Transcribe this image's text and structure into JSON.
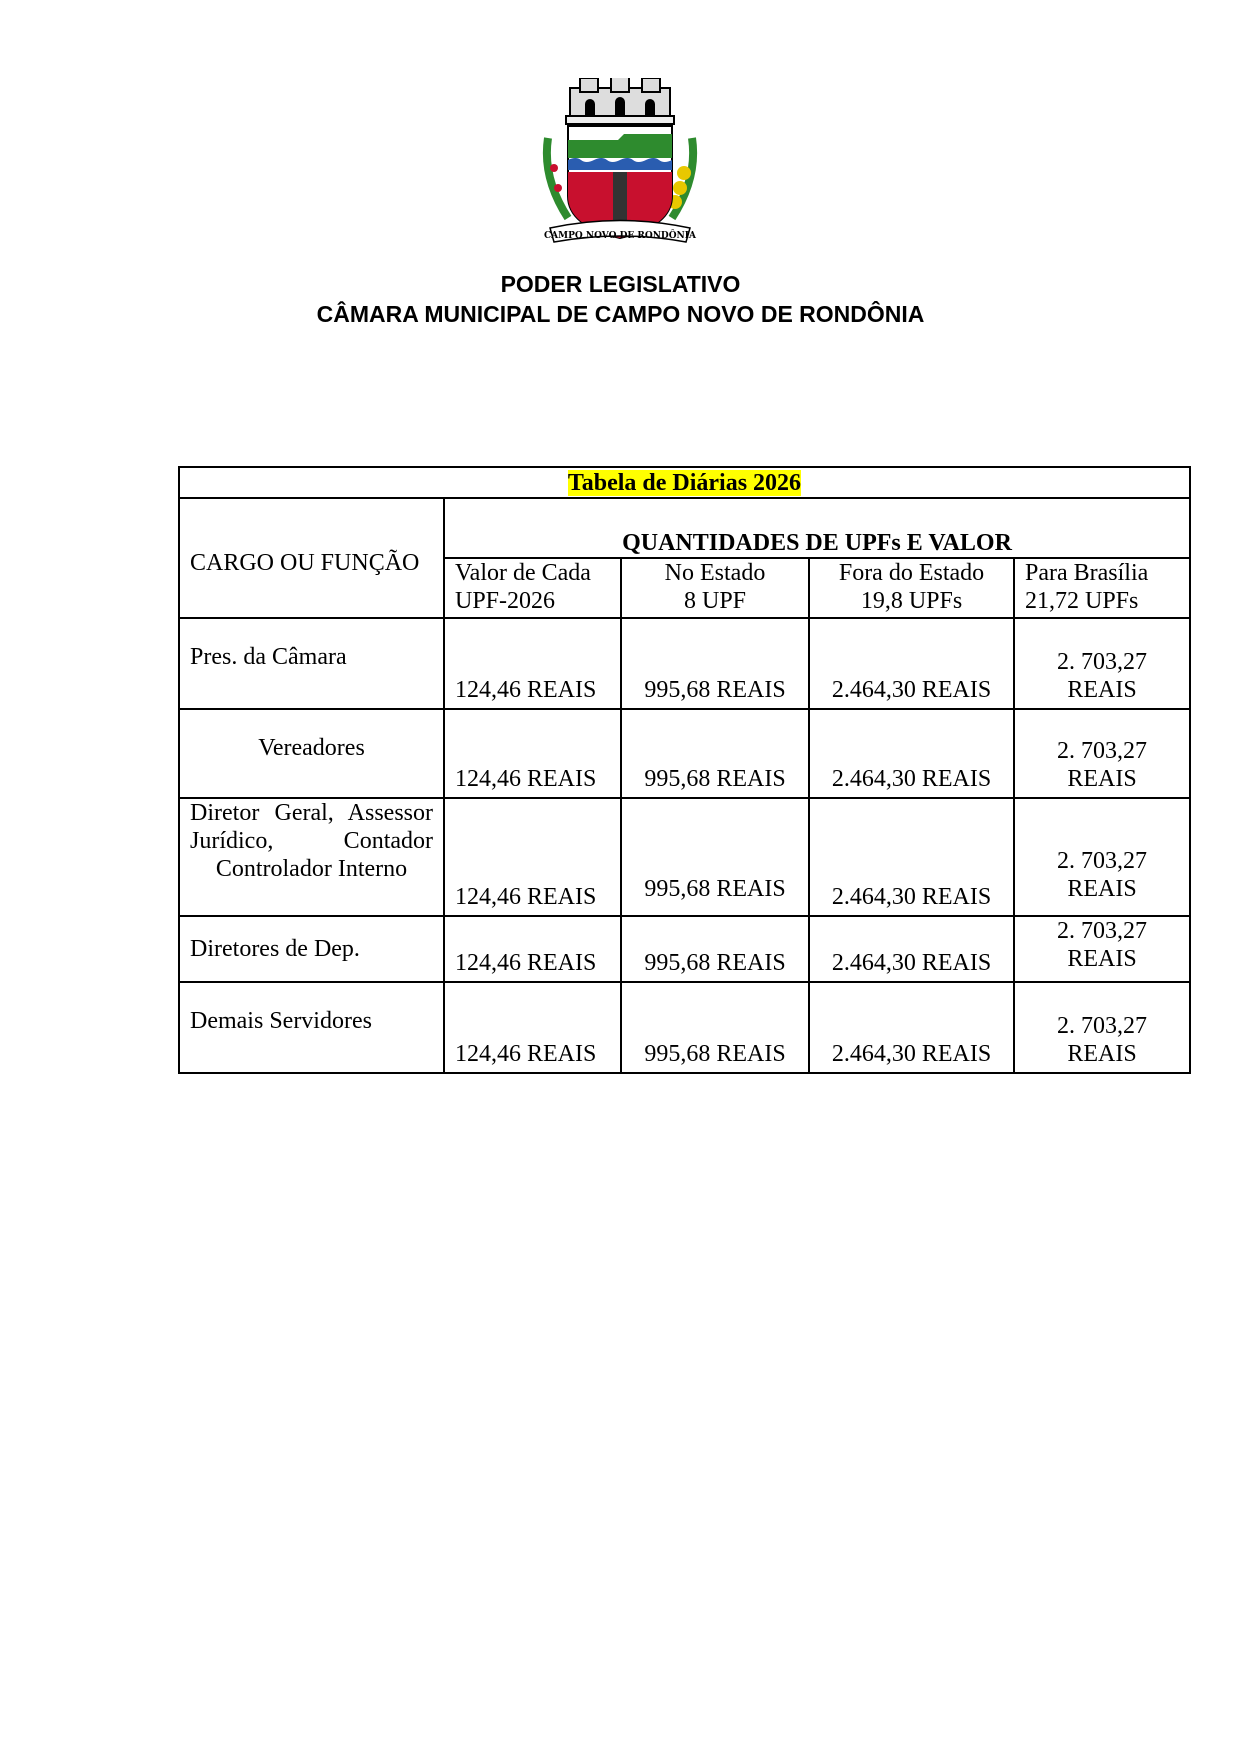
{
  "header": {
    "logo_text": "CAMPO NOVO DE RONDÔNIA",
    "line1": "PODER LEGISLATIVO",
    "line2": "CÂMARA MUNICIPAL DE CAMPO NOVO DE RONDÔNIA"
  },
  "table": {
    "title": "Tabela de Diárias 2026",
    "col1_header": "CARGO OU FUNÇÃO",
    "group_header": "QUANTIDADES DE UPFs E VALOR",
    "columns": [
      {
        "line1": "Valor de Cada",
        "line2": "UPF-2026"
      },
      {
        "line1": "No Estado",
        "line2": "8 UPF"
      },
      {
        "line1": "Fora do Estado",
        "line2": "19,8 UPFs"
      },
      {
        "line1": "Para Brasília",
        "line2": "21,72 UPFs"
      }
    ],
    "rows": [
      {
        "cargo": "Pres. da Câmara",
        "upf": "124,46  REAIS",
        "estado": "995,68  REAIS",
        "fora": "2.464,30  REAIS",
        "brasilia": "2. 703,27 REAIS"
      },
      {
        "cargo": "Vereadores",
        "upf": "124,46  REAIS",
        "estado": "995,68 REAIS",
        "fora": "2.464,30  REAIS",
        "brasilia": "2. 703,27 REAIS"
      },
      {
        "cargo": "Diretor Geral, Assessor Jurídico, Contador Controlador Interno",
        "upf": "124,46  REAIS",
        "estado": "995,68 REAIS",
        "fora": "2.464,30  REAIS",
        "brasilia": "2. 703,27 REAIS"
      },
      {
        "cargo": "Diretores de Dep.",
        "upf": "124,46  REAIS",
        "estado": "995,68 REAIS",
        "fora": "2.464,30  REAIS",
        "brasilia": "2. 703,27 REAIS"
      },
      {
        "cargo": "Demais Servidores",
        "upf": "124,46  REAIS",
        "estado": "995,68 REAIS",
        "fora": "2.464,30  REAIS",
        "brasilia": "2. 703,27 REAIS"
      }
    ]
  },
  "colors": {
    "highlight": "#ffff00",
    "shield_red": "#c8102e",
    "shield_green": "#2e8b2e",
    "wave_blue": "#2a5db0"
  }
}
